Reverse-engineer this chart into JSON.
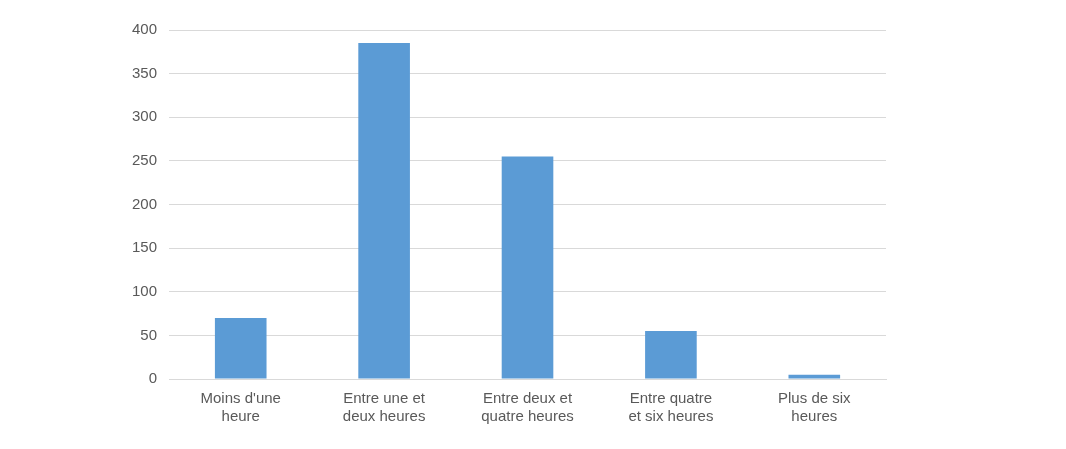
{
  "chart_data": {
    "type": "bar",
    "categories": [
      "Moins d'une heure",
      "Entre une et deux heures",
      "Entre deux et quatre heures",
      "Entre quatre et six heures",
      "Plus de six heures"
    ],
    "values": [
      70,
      385,
      255,
      55,
      5
    ],
    "color": "#5b9bd5",
    "ylim": [
      0,
      400
    ],
    "yticks": [
      0,
      50,
      100,
      150,
      200,
      250,
      300,
      350,
      400
    ],
    "grid": "y"
  }
}
